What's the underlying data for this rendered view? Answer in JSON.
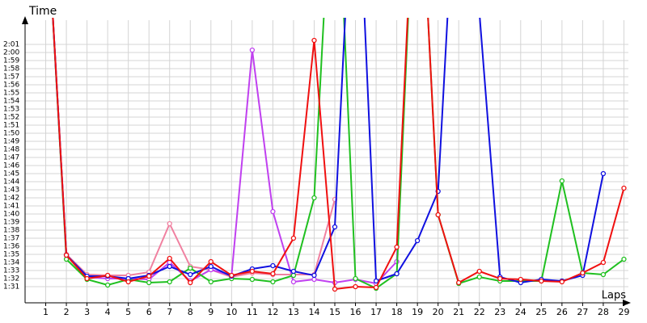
{
  "chart_data": {
    "type": "line",
    "y_label": "Time",
    "x_label": "Laps",
    "x": [
      1,
      2,
      3,
      4,
      5,
      6,
      7,
      8,
      9,
      10,
      11,
      12,
      13,
      14,
      15,
      16,
      17,
      18,
      19,
      20,
      21,
      22,
      23,
      24,
      25,
      26,
      27,
      28,
      29
    ],
    "xlim": [
      0,
      30
    ],
    "xticks": [
      1,
      2,
      3,
      4,
      5,
      6,
      7,
      8,
      9,
      10,
      11,
      12,
      13,
      14,
      15,
      16,
      17,
      18,
      19,
      20,
      21,
      22,
      23,
      24,
      25,
      26,
      27,
      28,
      29
    ],
    "ylim": [
      89,
      124
    ],
    "yticks": [
      {
        "value": 91,
        "label": "1:31"
      },
      {
        "value": 92,
        "label": "1:32"
      },
      {
        "value": 93,
        "label": "1:33"
      },
      {
        "value": 94,
        "label": "1:34"
      },
      {
        "value": 95,
        "label": "1:35"
      },
      {
        "value": 96,
        "label": "1:36"
      },
      {
        "value": 97,
        "label": "1:37"
      },
      {
        "value": 98,
        "label": "1:38"
      },
      {
        "value": 99,
        "label": "1:39"
      },
      {
        "value": 100,
        "label": "1:40"
      },
      {
        "value": 101,
        "label": "1:41"
      },
      {
        "value": 102,
        "label": "1:42"
      },
      {
        "value": 103,
        "label": "1:43"
      },
      {
        "value": 104,
        "label": "1:44"
      },
      {
        "value": 105,
        "label": "1:45"
      },
      {
        "value": 106,
        "label": "1:46"
      },
      {
        "value": 107,
        "label": "1:47"
      },
      {
        "value": 108,
        "label": "1:48"
      },
      {
        "value": 109,
        "label": "1:49"
      },
      {
        "value": 110,
        "label": "1:50"
      },
      {
        "value": 111,
        "label": "1:51"
      },
      {
        "value": 112,
        "label": "1:52"
      },
      {
        "value": 113,
        "label": "1:53"
      },
      {
        "value": 114,
        "label": "1:54"
      },
      {
        "value": 115,
        "label": "1:55"
      },
      {
        "value": 116,
        "label": "1:56"
      },
      {
        "value": 117,
        "label": "1:57"
      },
      {
        "value": 118,
        "label": "1:58"
      },
      {
        "value": 119,
        "label": "1:59"
      },
      {
        "value": 120,
        "label": "2:00"
      },
      {
        "value": 121,
        "label": "2:01"
      }
    ],
    "grid": true,
    "series": [
      {
        "color": "#f0f000",
        "values": [
          null,
          null,
          null,
          null,
          null,
          null,
          null,
          null,
          null,
          null,
          null,
          null,
          null,
          null,
          null,
          null,
          null,
          null,
          null,
          null,
          null,
          null,
          null,
          null,
          null,
          null,
          null,
          null,
          null
        ]
      },
      {
        "color": "#f080a0",
        "values": [
          140,
          95,
          92.5,
          92.4,
          92.4,
          92.8,
          98.8,
          93.5,
          93.1,
          92.2,
          92.7,
          92.5,
          92.5,
          92.5,
          101.8,
          null,
          null,
          null,
          null,
          null,
          null,
          null,
          null,
          null,
          null,
          null,
          null,
          null,
          null
        ]
      },
      {
        "color": "#c040f0",
        "values": [
          140,
          94.9,
          92.2,
          92,
          92,
          91.9,
          94,
          91.7,
          93.1,
          92.4,
          120.3,
          100.3,
          91.6,
          91.9,
          91.5,
          91.9,
          91.4,
          94.1,
          150,
          null,
          null,
          null,
          null,
          null,
          null,
          null,
          null,
          null,
          null
        ]
      },
      {
        "color": "#20c020",
        "values": [
          140,
          94.4,
          91.9,
          91.2,
          91.9,
          91.5,
          91.6,
          93.3,
          91.6,
          92,
          91.9,
          91.6,
          92.4,
          102,
          150,
          92,
          90.8,
          92.6,
          150,
          99.9,
          91.4,
          92.2,
          91.7,
          91.7,
          91.7,
          104.1,
          92.7,
          92.5,
          94.4
        ]
      },
      {
        "color": "#1010e0",
        "values": [
          140,
          94.9,
          92.3,
          92.3,
          92,
          92.4,
          93.5,
          92.5,
          93.5,
          92.3,
          93.2,
          93.6,
          92.9,
          92.4,
          98.4,
          150,
          91.7,
          92.6,
          96.7,
          102.8,
          150,
          125,
          92.2,
          91.5,
          91.9,
          91.7,
          92.4,
          105,
          null
        ]
      },
      {
        "color": "#f01010",
        "values": [
          140,
          94.9,
          92,
          92.4,
          91.6,
          92.3,
          94.5,
          91.5,
          94.1,
          92.4,
          92.9,
          92.6,
          97,
          121.5,
          90.7,
          91,
          90.9,
          95.9,
          150,
          99.9,
          91.5,
          92.9,
          92,
          91.9,
          91.7,
          91.6,
          92.7,
          94,
          103.2
        ]
      }
    ]
  }
}
